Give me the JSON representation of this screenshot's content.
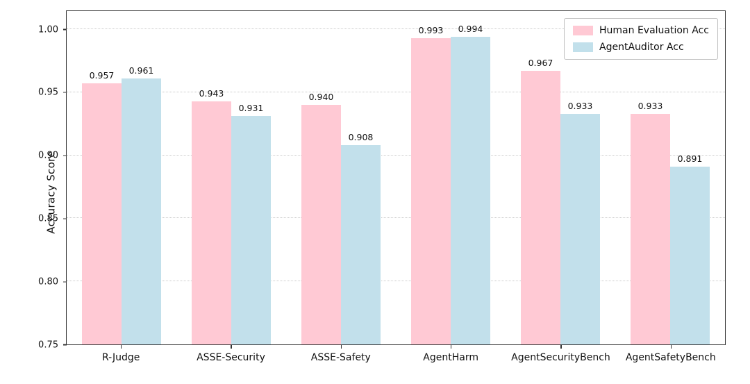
{
  "chart_data": {
    "type": "bar",
    "title": "",
    "xlabel": "",
    "ylabel": "Accuracy Score",
    "ylim": [
      0.75,
      1.0
    ],
    "yticks": [
      0.75,
      0.8,
      0.85,
      0.9,
      0.95,
      1.0
    ],
    "grid": "horizontal-dotted",
    "legend_position": "upper right",
    "categories": [
      "R-Judge",
      "ASSE-Security",
      "ASSE-Safety",
      "AgentHarm",
      "AgentSecurityBench",
      "AgentSafetyBench"
    ],
    "series": [
      {
        "name": "Human Evaluation Acc",
        "color": "#ffc9d4",
        "values": [
          0.957,
          0.943,
          0.94,
          0.993,
          0.967,
          0.933
        ]
      },
      {
        "name": "AgentAuditor Acc",
        "color": "#c2e0eb",
        "values": [
          0.961,
          0.931,
          0.908,
          0.994,
          0.933,
          0.891
        ]
      }
    ]
  }
}
